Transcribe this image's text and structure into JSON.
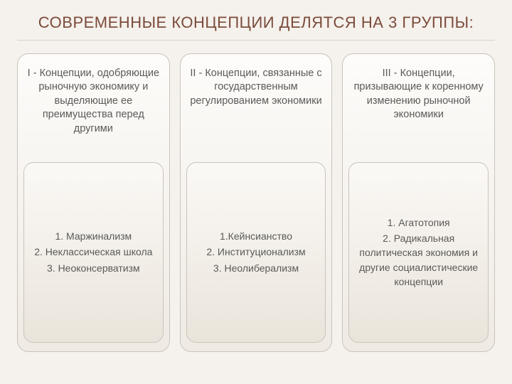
{
  "title": "СОВРЕМЕННЫЕ КОНЦЕПЦИИ ДЕЛЯТСЯ НА 3 ГРУППЫ:",
  "columns": [
    {
      "header": "I  - Концепции, одобряющие рыночную экономику и выделяющие ее преимущества перед другими",
      "items": [
        "1.  Маржинализм",
        "2. Неклассическая школа",
        "3. Неоконсерватизм"
      ]
    },
    {
      "header": "II - Концепции, связанные с государственным регулированием экономики",
      "items": [
        "1.Кейнсианство",
        "2. Институционализм",
        "3. Неолиберализм"
      ]
    },
    {
      "header": "III - Концепции, призывающие к коренному изменению рыночной экономики",
      "items": [
        "1. Агатотопия",
        "2. Радикальная политическая экономия и другие социалистические концепции"
      ]
    }
  ],
  "style": {
    "type": "infographic",
    "background_color": "#f5f1ec",
    "title_color": "#7b4b3a",
    "title_fontsize": 22,
    "body_text_color": "#5a5a58",
    "body_fontsize": 14,
    "box_border_color": "#c9c3bb",
    "box_border_radius": 16,
    "box_gradient_from": "#fdfcfa",
    "box_gradient_to": "#efeae3",
    "divider_color": "#d7d2cb",
    "columns_gap": 14,
    "aspect": "720x540"
  }
}
